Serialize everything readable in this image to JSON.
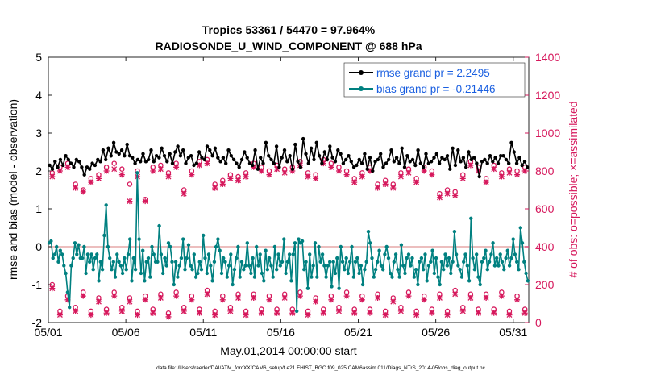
{
  "chart_data": {
    "type": "line",
    "title_line1": "Tropics 53361 / 54470 = 97.964%",
    "title_line2": "RADIOSONDE_U_WIND_COMPONENT @ 688 hPa",
    "xlabel": "May.01,2014 00:00:00 start",
    "ylabel": "rmse and bias (model - observation)",
    "ylabel_right": "# of obs: o=possible; ×=assimilated",
    "footer": "data file: /Users/raeder/DAI/ATM_forcXX/CAM6_setup/f.e21.FHIST_BGC.f09_025.CAM6assim.011/Diags_NTrS_2014-05/obs_diag_output.nc",
    "xlim": [
      1,
      32
    ],
    "ylim": [
      -2,
      5
    ],
    "ylim_right": [
      0,
      1400
    ],
    "x_ticks": [
      1,
      6,
      11,
      16,
      21,
      26,
      31
    ],
    "x_tick_labels": [
      "05/01",
      "05/06",
      "05/11",
      "05/16",
      "05/21",
      "05/26",
      "05/31"
    ],
    "y_ticks": [
      -2,
      -1,
      0,
      1,
      2,
      3,
      4,
      5
    ],
    "y_ticks_right": [
      0,
      200,
      400,
      600,
      800,
      1000,
      1200,
      1400
    ],
    "legend": [
      {
        "label": "rmse grand pr = 2.2495",
        "color": "#000000"
      },
      {
        "label": "bias grand pr = -0.21446",
        "color": "#008080"
      }
    ],
    "colors": {
      "rmse": "#000000",
      "bias": "#008080",
      "obs": "#d6185c",
      "zero_line": "#e6a8a8",
      "legend_text": "#1a5fe0"
    },
    "series": [
      {
        "name": "rmse",
        "color": "#000000",
        "values": [
          2.15,
          2.05,
          2.25,
          2.1,
          2.3,
          2.15,
          2.4,
          2.3,
          2.2,
          2.1,
          2.3,
          2.25,
          2.1,
          1.9,
          2.1,
          2.05,
          2.2,
          2.15,
          2.3,
          2.25,
          2.55,
          2.3,
          2.6,
          2.4,
          2.75,
          2.5,
          2.45,
          2.55,
          2.4,
          2.7,
          2.4,
          2.35,
          2.2,
          2.3,
          2.25,
          2.45,
          2.25,
          2.3,
          2.55,
          2.25,
          2.4,
          2.35,
          2.6,
          2.4,
          2.25,
          2.45,
          2.2,
          2.5,
          2.65,
          2.4,
          2.55,
          2.2,
          2.35,
          2.4,
          2.15,
          2.2,
          2.5,
          2.35,
          2.3,
          2.65,
          2.55,
          2.4,
          2.6,
          2.35,
          2.25,
          2.35,
          2.2,
          2.55,
          2.4,
          2.3,
          2.2,
          2.1,
          2.3,
          2.5,
          2.35,
          2.2,
          2.15,
          2.55,
          2.05,
          2.35,
          2.2,
          2.75,
          2.4,
          2.3,
          2.2,
          2.65,
          2.1,
          2.35,
          2.55,
          2.25,
          2.4,
          2.05,
          2.7,
          2.25,
          2.1,
          2.85,
          2.45,
          2.2,
          2.6,
          2.3,
          2.75,
          2.4,
          2.2,
          2.5,
          2.3,
          2.65,
          2.35,
          2.25,
          2.55,
          2.45,
          2.2,
          2.3,
          2.4,
          2.25,
          2.1,
          2.15,
          2.3,
          2.2,
          2.45,
          2.05,
          2.35,
          2.0,
          2.25,
          2.3,
          2.45,
          2.1,
          2.2,
          2.3,
          2.55,
          2.25,
          2.35,
          2.2,
          2.6,
          2.1,
          2.4,
          2.25,
          2.3,
          2.15,
          2.55,
          2.2,
          2.1,
          2.45,
          2.2,
          2.25,
          2.35,
          2.45,
          2.2,
          2.35,
          2.3,
          2.4,
          2.05,
          2.6,
          2.15,
          2.55,
          2.25,
          2.35,
          2.1,
          2.5,
          2.3,
          2.35,
          2.2,
          1.85,
          2.25,
          2.3,
          2.2,
          2.4,
          2.25,
          2.35,
          2.2,
          2.4,
          2.4,
          2.3,
          2.2,
          2.75,
          2.5,
          2.2,
          2.35,
          2.15,
          2.25,
          2.1
        ]
      },
      {
        "name": "bias",
        "color": "#008080",
        "values": [
          0.1,
          0.15,
          -0.3,
          -0.2,
          0.0,
          -0.4,
          -0.1,
          -0.2,
          -0.5,
          -0.7,
          -1.2,
          -1.6,
          -0.5,
          -0.3,
          0.1,
          -0.2,
          0.05,
          -0.3,
          -0.3,
          0.0,
          -0.7,
          -0.2,
          -0.4,
          -0.2,
          -0.6,
          -0.3,
          -0.2,
          -0.9,
          -0.4,
          -0.6,
          0.3,
          1.1,
          0.0,
          -0.3,
          -0.6,
          -0.4,
          -0.8,
          -0.2,
          -0.4,
          -0.5,
          -0.7,
          -0.3,
          -0.6,
          -0.2,
          0.2,
          -0.9,
          -0.3,
          -0.6,
          1.95,
          0.2,
          -0.7,
          -0.1,
          -0.9,
          -0.4,
          -0.3,
          -0.8,
          0.0,
          -0.2,
          -0.4,
          -0.4,
          0.55,
          -0.2,
          -0.7,
          -0.3,
          -0.5,
          0.1,
          0.0,
          -0.4,
          -1.0,
          -0.4,
          -0.8,
          -0.5,
          -0.3,
          0.2,
          -0.6,
          -0.3,
          0.05,
          -0.5,
          -0.6,
          -0.2,
          -0.8,
          -0.7,
          -0.4,
          -0.6,
          0.3,
          -0.3,
          -0.7,
          -0.2,
          -0.5,
          -0.9,
          -0.4,
          0.0,
          0.2,
          -0.1,
          -0.7,
          -0.3,
          -0.4,
          -0.8,
          -0.5,
          -0.2,
          -1.0,
          -0.6,
          -0.3,
          0.0,
          -0.8,
          -0.4,
          -0.6,
          -0.5,
          0.1,
          -0.5,
          -0.7,
          -0.3,
          -0.8,
          0.0,
          -0.5,
          -0.2,
          -0.7,
          -0.9,
          -0.1,
          -0.6,
          -0.3,
          -0.5,
          -0.8,
          0.0,
          -0.6,
          -0.2,
          -0.5,
          -0.4,
          0.2,
          -0.7,
          -0.4,
          -0.2,
          -0.9,
          -0.2,
          0.1,
          -1.7,
          0.2,
          0.1,
          0.15,
          -0.6,
          -0.4,
          -1.1,
          -0.2,
          -0.8,
          -0.5,
          0.1,
          -0.8,
          0.0,
          -0.4,
          -0.2,
          -0.5,
          -0.8,
          -0.5,
          -0.4,
          -1.05,
          -0.4,
          -0.7,
          -0.3,
          -1.1,
          0.0,
          -0.4,
          -0.6,
          -0.3,
          -0.7,
          -0.4,
          0.0,
          -0.8,
          -0.4,
          -0.3,
          -0.7,
          -0.5,
          -1.0,
          -0.6,
          -0.4,
          0.4,
          0.1,
          -0.3,
          -0.8,
          -0.6,
          -0.4,
          -0.1,
          -0.5,
          -0.6,
          -0.2,
          0.0,
          -0.3,
          -0.7,
          -0.8,
          -0.4,
          -0.2,
          -0.6,
          -0.8,
          0.05,
          -0.5,
          -0.7,
          -0.3,
          -0.2,
          -0.5,
          -0.3,
          -0.8,
          -0.6,
          -1.0,
          -0.4,
          -0.3,
          -0.6,
          -0.2,
          -0.9,
          -0.5,
          -0.4,
          -0.1,
          -0.7,
          -0.3,
          -0.8,
          -1.0,
          -0.4,
          -0.6,
          -0.2,
          -0.5,
          -0.3,
          -0.7,
          -0.4,
          0.4,
          -0.2,
          -0.5,
          -0.6,
          -0.8,
          -0.4,
          -0.2,
          -0.5,
          -0.9,
          0.75,
          -0.3,
          -0.6,
          -0.2,
          -0.8,
          -1.0,
          -0.4,
          -0.3,
          -0.1,
          -0.6,
          -0.4,
          -0.2,
          0.1,
          -0.5,
          -0.3,
          -0.5,
          -0.2,
          -0.4,
          -0.6,
          -0.3,
          -0.1,
          -0.5,
          -0.3,
          0.2,
          -0.2,
          -0.4,
          -0.6,
          0.5,
          0.1,
          -0.4,
          -0.7,
          -0.9
        ]
      },
      {
        "name": "obs_possible_high",
        "color": "#d6185c",
        "values": [
          790,
          820,
          840,
          730,
          700,
          760,
          780,
          820,
          840,
          810,
          730,
          800,
          650,
          820,
          830,
          790,
          840,
          700,
          800,
          850,
          860,
          730,
          750,
          780,
          770,
          790,
          840,
          820,
          800,
          830,
          810,
          820,
          850,
          790,
          780,
          860,
          840,
          820,
          800,
          760,
          790,
          820,
          730,
          750,
          730,
          790,
          810,
          760,
          820,
          800,
          680,
          700,
          690,
          780,
          850,
          820,
          760,
          830,
          790,
          810,
          800,
          820
        ]
      },
      {
        "name": "obs_assimilated_high",
        "color": "#d6185c",
        "values": [
          770,
          800,
          820,
          710,
          690,
          740,
          760,
          800,
          810,
          780,
          640,
          770,
          640,
          800,
          810,
          770,
          820,
          680,
          780,
          830,
          840,
          710,
          730,
          760,
          750,
          770,
          820,
          800,
          780,
          810,
          790,
          800,
          830,
          770,
          760,
          840,
          820,
          800,
          780,
          740,
          770,
          800,
          710,
          730,
          710,
          770,
          790,
          740,
          800,
          780,
          660,
          680,
          670,
          760,
          830,
          800,
          740,
          810,
          770,
          790,
          780,
          800
        ]
      },
      {
        "name": "obs_possible_low",
        "color": "#d6185c",
        "values": [
          200,
          60,
          140,
          80,
          160,
          60,
          130,
          70,
          160,
          80,
          130,
          60,
          140,
          70,
          150,
          50,
          160,
          80,
          140,
          70,
          170,
          60,
          140,
          80,
          150,
          60,
          150,
          70,
          140,
          70,
          150,
          70,
          160,
          60,
          130,
          70,
          140,
          80,
          160,
          70,
          140,
          70,
          150,
          60,
          130,
          80,
          160,
          60,
          140,
          70,
          150,
          60,
          170,
          80,
          150,
          70,
          150,
          70,
          160,
          60,
          140,
          70
        ]
      },
      {
        "name": "obs_assimilated_low",
        "color": "#d6185c",
        "values": [
          180,
          40,
          120,
          60,
          140,
          40,
          110,
          50,
          140,
          60,
          110,
          40,
          120,
          50,
          130,
          30,
          140,
          60,
          120,
          50,
          150,
          40,
          120,
          60,
          130,
          40,
          130,
          50,
          120,
          50,
          130,
          50,
          140,
          40,
          110,
          50,
          120,
          60,
          140,
          50,
          120,
          50,
          130,
          40,
          110,
          60,
          140,
          40,
          120,
          50,
          130,
          40,
          150,
          60,
          130,
          50,
          130,
          50,
          140,
          40,
          120,
          50
        ]
      }
    ]
  }
}
